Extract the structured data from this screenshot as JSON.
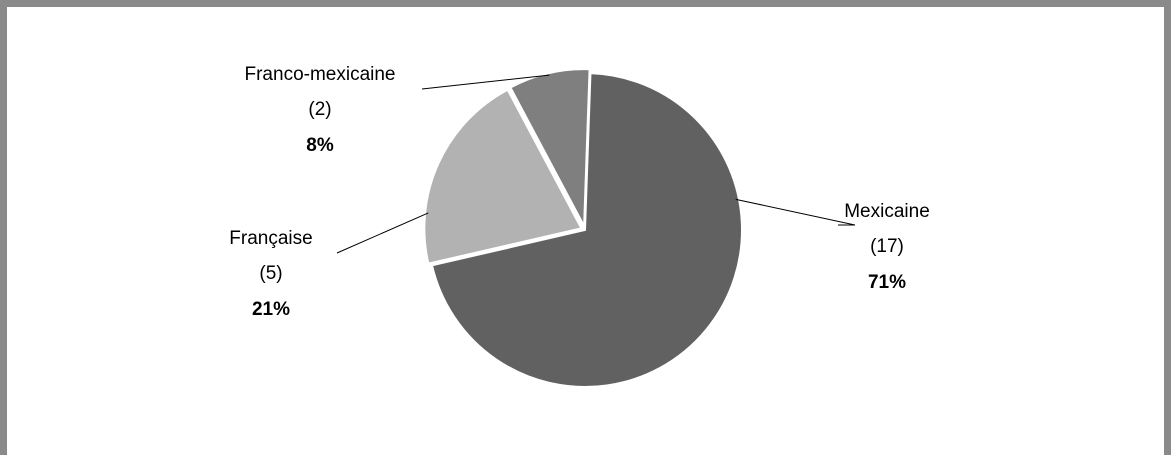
{
  "chart_data": {
    "type": "pie",
    "title": "",
    "slices": [
      {
        "name": "Mexicaine",
        "count": "(17)",
        "percent": "71%",
        "value": 17,
        "color": "#616161"
      },
      {
        "name": "Française",
        "count": "(5)",
        "percent": "21%",
        "value": 5,
        "color": "#b2b2b2"
      },
      {
        "name": "Franco-mexicaine",
        "count": "(2)",
        "percent": "8%",
        "value": 2,
        "color": "#7f7f7f"
      }
    ],
    "legend": "none",
    "label_style": "outside with leader lines"
  }
}
